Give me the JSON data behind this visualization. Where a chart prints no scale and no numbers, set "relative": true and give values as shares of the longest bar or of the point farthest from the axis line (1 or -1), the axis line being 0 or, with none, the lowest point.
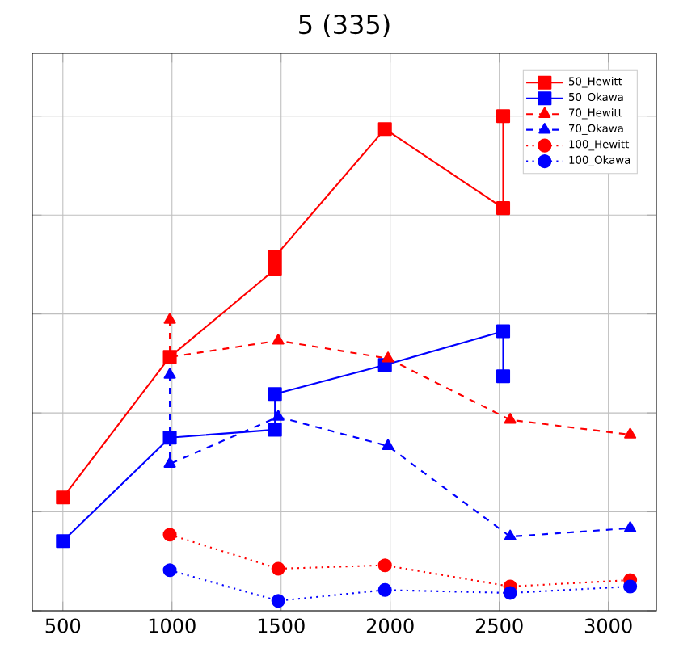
{
  "chart_data": {
    "type": "line",
    "title": "5 (335)",
    "relative": true,
    "grid": true,
    "legend": "top right",
    "xlim": [
      360,
      3220
    ],
    "xticks": [
      500,
      1000,
      1500,
      2000,
      2500,
      3000
    ],
    "tick_labels": "x",
    "series": [
      {
        "name": "50_Hewitt",
        "color": "#ff0000",
        "marker": "square",
        "line_style": "solid",
        "x": [
          500,
          990,
          1472,
          1472,
          1976,
          2518,
          2518
        ],
        "values": [
          0.229,
          0.513,
          0.69,
          0.716,
          0.974,
          0.814,
          1.0
        ]
      },
      {
        "name": "50_Okawa",
        "color": "#0000ff",
        "marker": "square",
        "line_style": "solid",
        "x": [
          500,
          990,
          1472,
          1472,
          1976,
          2518,
          2518
        ],
        "values": [
          0.141,
          0.35,
          0.366,
          0.438,
          0.497,
          0.565,
          0.474
        ]
      },
      {
        "name": "70_Hewitt",
        "color": "#ff0000",
        "marker": "triangle",
        "line_style": "dashed",
        "x": [
          990,
          990,
          1487,
          1990,
          2550,
          3100
        ],
        "values": [
          0.588,
          0.513,
          0.546,
          0.51,
          0.386,
          0.356
        ]
      },
      {
        "name": "70_Okawa",
        "color": "#0000ff",
        "marker": "triangle",
        "line_style": "dashed",
        "x": [
          990,
          990,
          1487,
          1990,
          2550,
          3100
        ],
        "values": [
          0.477,
          0.297,
          0.392,
          0.333,
          0.15,
          0.167
        ]
      },
      {
        "name": "100_Hewitt",
        "color": "#ff0000",
        "marker": "circle",
        "line_style": "dotted",
        "x": [
          990,
          1487,
          1976,
          2550,
          3100
        ],
        "values": [
          0.154,
          0.085,
          0.092,
          0.049,
          0.062
        ]
      },
      {
        "name": "100_Okawa",
        "color": "#0000ff",
        "marker": "circle",
        "line_style": "dotted",
        "x": [
          990,
          1487,
          1976,
          2550,
          3100
        ],
        "values": [
          0.082,
          0.02,
          0.042,
          0.036,
          0.049
        ]
      }
    ]
  }
}
